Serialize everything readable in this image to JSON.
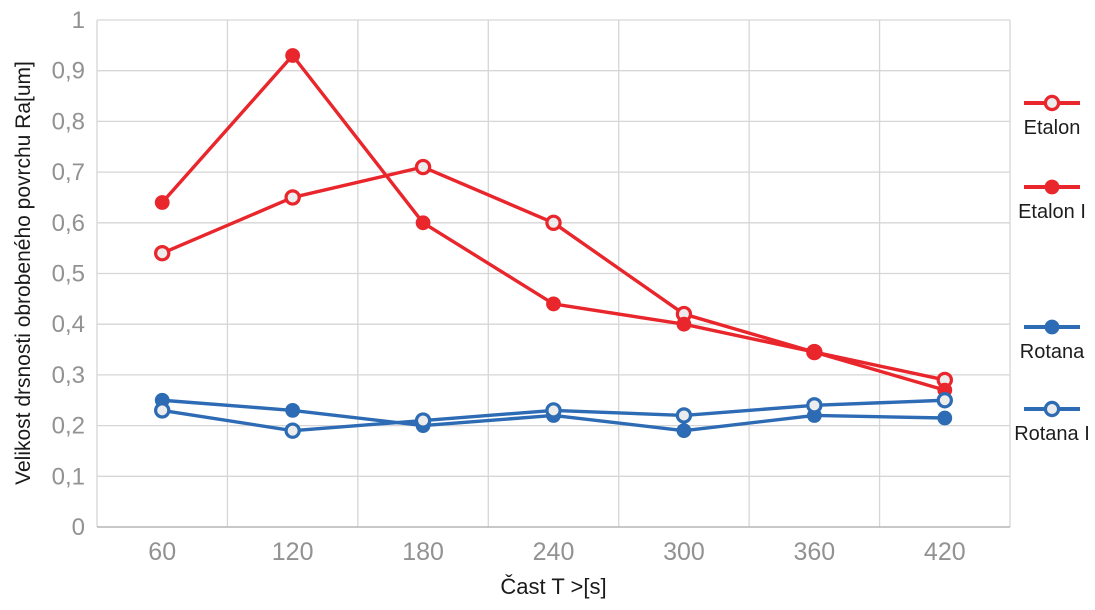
{
  "chart_data": {
    "type": "line",
    "xlabel": "Čast T >[s]",
    "ylabel": "Velikost drsnosti obrobeného povrchu Ra[um]",
    "x_categories": [
      "60",
      "120",
      "180",
      "240",
      "300",
      "360",
      "420"
    ],
    "ylim": [
      0,
      1
    ],
    "ytick_labels": [
      "0",
      "0,1",
      "0,2",
      "0,3",
      "0,4",
      "0,5",
      "0,6",
      "0,7",
      "0,8",
      "0,9",
      "1"
    ],
    "grid": true,
    "legend_position": "right",
    "series": [
      {
        "name": "Etalon",
        "color": "#e8262c",
        "marker": "open",
        "values": [
          0.54,
          0.65,
          0.71,
          0.6,
          0.42,
          0.345,
          0.29
        ]
      },
      {
        "name": "Etalon I",
        "color": "#e8262c",
        "marker": "filled",
        "values": [
          0.64,
          0.93,
          0.6,
          0.44,
          0.4,
          0.345,
          0.27
        ]
      },
      {
        "name": "Rotana",
        "color": "#2d6bb4",
        "marker": "filled",
        "values": [
          0.25,
          0.23,
          0.2,
          0.22,
          0.19,
          0.22,
          0.215
        ]
      },
      {
        "name": "Rotana I",
        "color": "#2d6bb4",
        "marker": "open",
        "values": [
          0.23,
          0.19,
          0.21,
          0.23,
          0.22,
          0.24,
          0.25
        ]
      }
    ],
    "style": {
      "grid_color": "#d6d6d6",
      "axis_color": "#b5b5b5",
      "tick_color": "#929292",
      "title_color": "#1a1a1a",
      "open_marker_fill": "#ececec",
      "background": "#ffffff"
    }
  }
}
